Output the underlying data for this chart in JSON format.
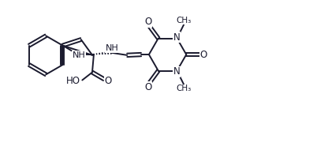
{
  "bg_color": "#ffffff",
  "line_color": "#1a1a2e",
  "line_width": 1.4,
  "font_size": 8.5,
  "fig_width": 3.97,
  "fig_height": 1.95,
  "dpi": 100,
  "xlim": [
    0,
    10
  ],
  "ylim": [
    0,
    4.9
  ]
}
